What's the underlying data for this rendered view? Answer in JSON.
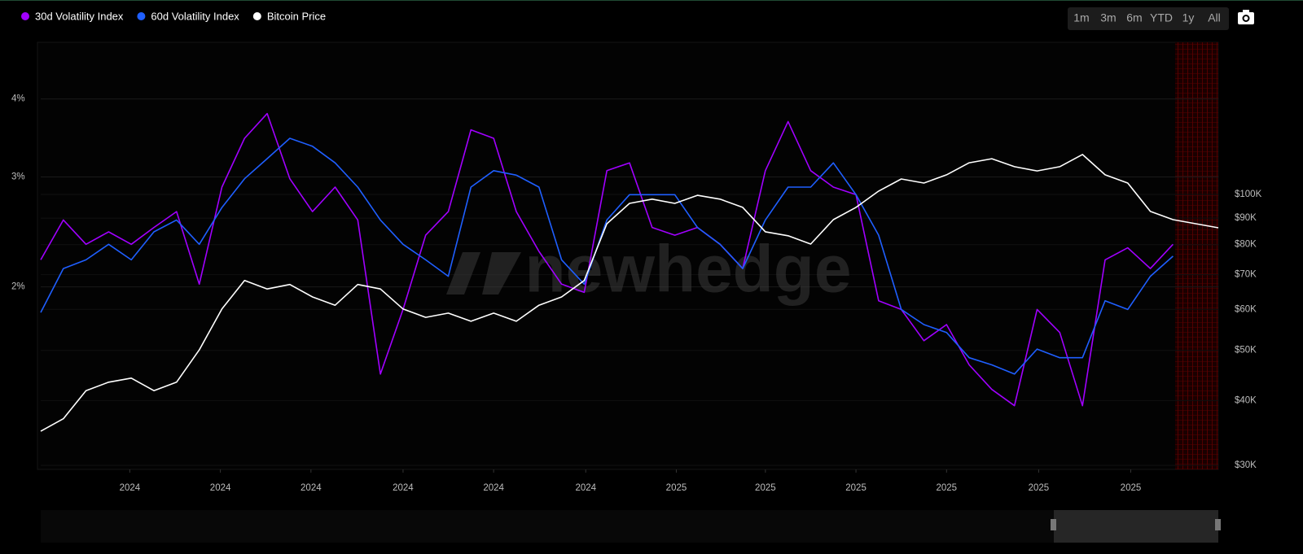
{
  "chart_data": {
    "type": "line",
    "legend": "top-left",
    "grid": true,
    "log_y": true,
    "log_y2": true,
    "x": [
      0,
      15,
      30,
      45,
      60,
      75,
      90,
      105,
      120,
      135,
      150,
      165,
      180,
      195,
      210,
      225,
      240,
      255,
      270,
      285,
      300,
      315,
      330,
      345,
      360,
      375,
      390,
      405,
      420,
      435,
      450,
      465,
      480,
      495,
      510,
      525,
      540,
      555,
      570,
      585,
      600,
      615,
      630,
      645,
      660,
      675,
      690,
      705,
      720,
      735,
      750,
      765,
      780
    ],
    "xlim": [
      0,
      780
    ],
    "xticks": [
      {
        "value": 59,
        "label": "2024"
      },
      {
        "value": 119,
        "label": "2024"
      },
      {
        "value": 179,
        "label": "2024"
      },
      {
        "value": 240,
        "label": "2024"
      },
      {
        "value": 300,
        "label": "2024"
      },
      {
        "value": 361,
        "label": "2024"
      },
      {
        "value": 421,
        "label": "2025"
      },
      {
        "value": 480,
        "label": "2025"
      },
      {
        "value": 540,
        "label": "2025"
      },
      {
        "value": 600,
        "label": "2025"
      },
      {
        "value": 661,
        "label": "2025"
      },
      {
        "value": 722,
        "label": "2025"
      }
    ],
    "ylim": [
      1.02,
      4.93
    ],
    "yticks": [
      {
        "value": 2,
        "label": "2%"
      },
      {
        "value": 3,
        "label": "3%"
      },
      {
        "value": 4,
        "label": "4%"
      }
    ],
    "y2lim": [
      29460,
      196600
    ],
    "y2ticks": [
      {
        "value": 30000,
        "label": "$30K"
      },
      {
        "value": 40000,
        "label": "$40K"
      },
      {
        "value": 50000,
        "label": "$50K"
      },
      {
        "value": 60000,
        "label": "$60K"
      },
      {
        "value": 70000,
        "label": "$70K"
      },
      {
        "value": 80000,
        "label": "$80K"
      },
      {
        "value": 90000,
        "label": "$90K"
      },
      {
        "value": 100000,
        "label": "$100K"
      }
    ],
    "series": [
      {
        "name": "30d Volatility Index",
        "color": "#a100ff",
        "axis": "y",
        "values": [
          2.21,
          2.56,
          2.34,
          2.45,
          2.34,
          2.49,
          2.64,
          2.02,
          2.89,
          3.46,
          3.79,
          2.98,
          2.64,
          2.89,
          2.56,
          1.45,
          1.84,
          2.42,
          2.64,
          3.57,
          3.46,
          2.64,
          2.28,
          2.02,
          1.96,
          3.07,
          3.16,
          2.49,
          2.42,
          2.49,
          2.34,
          2.14,
          3.07,
          3.68,
          3.07,
          2.89,
          2.81,
          1.9,
          1.84,
          1.64,
          1.74,
          1.5,
          1.37,
          1.29,
          1.84,
          1.69,
          1.29,
          2.21,
          2.31,
          2.14,
          2.34,
          null,
          null
        ]
      },
      {
        "name": "60d Volatility Index",
        "color": "#1f5fff",
        "axis": "y",
        "values": [
          1.82,
          2.14,
          2.21,
          2.34,
          2.21,
          2.45,
          2.56,
          2.34,
          2.68,
          2.98,
          3.21,
          3.46,
          3.36,
          3.16,
          2.89,
          2.56,
          2.34,
          2.21,
          2.08,
          2.89,
          3.07,
          3.02,
          2.89,
          2.21,
          2.02,
          2.56,
          2.81,
          2.81,
          2.81,
          2.49,
          2.34,
          2.14,
          2.56,
          2.89,
          2.89,
          3.16,
          2.81,
          2.42,
          1.84,
          1.74,
          1.69,
          1.54,
          1.5,
          1.45,
          1.59,
          1.54,
          1.54,
          1.9,
          1.84,
          2.08,
          2.24,
          null,
          null
        ]
      },
      {
        "name": "Bitcoin Price",
        "color": "#ffffff",
        "axis": "y2",
        "values": [
          34900,
          36900,
          41800,
          43400,
          44200,
          41800,
          43400,
          50100,
          60100,
          68200,
          65700,
          67000,
          63400,
          61100,
          67000,
          65700,
          60100,
          57900,
          59000,
          56900,
          59000,
          56900,
          61100,
          63400,
          68200,
          87800,
          96100,
          97900,
          96100,
          99600,
          97900,
          94400,
          84700,
          83200,
          80200,
          89400,
          94400,
          101500,
          107100,
          105200,
          109100,
          115100,
          117200,
          113100,
          111000,
          113100,
          119400,
          109100,
          105200,
          92700,
          89400,
          87800,
          86200
        ]
      }
    ]
  },
  "watermark": "newhedge",
  "toolbar": {
    "buttons": [
      "1m",
      "3m",
      "6m",
      "YTD",
      "1y",
      "All"
    ]
  }
}
